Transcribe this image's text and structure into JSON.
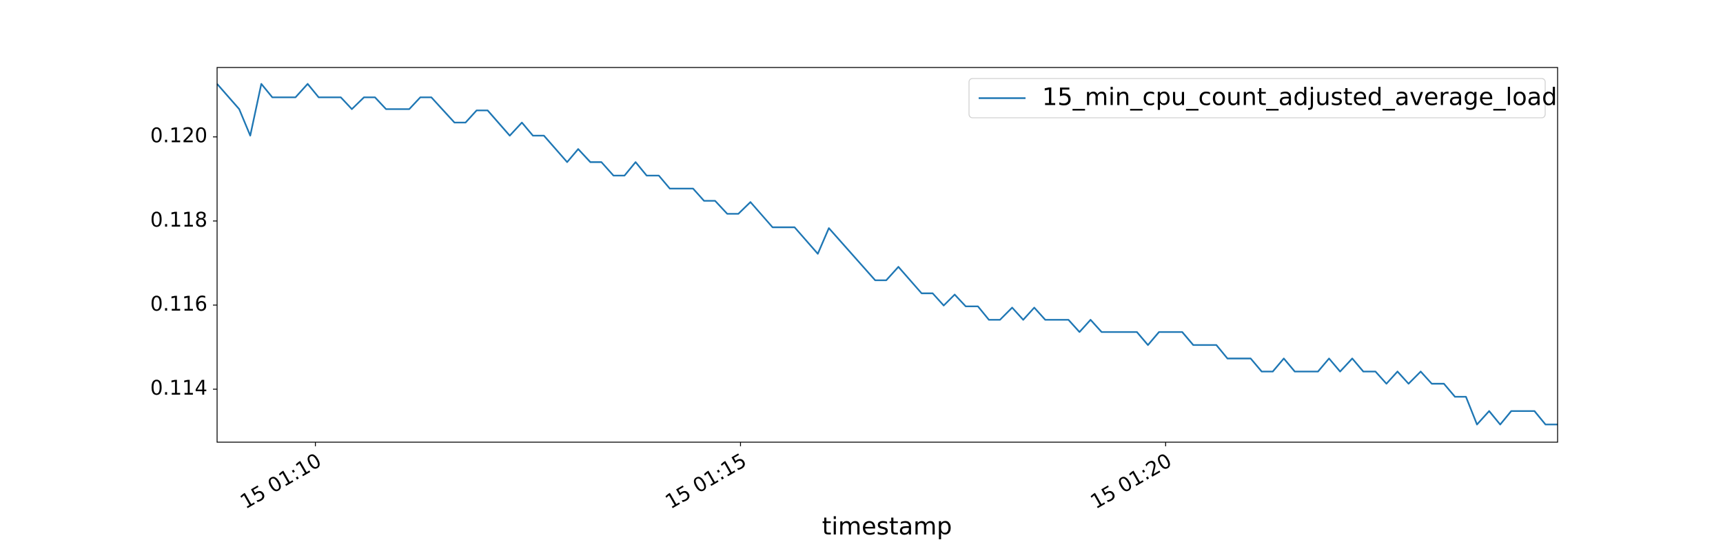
{
  "chart_data": {
    "type": "line",
    "xlabel": "timestamp",
    "legend": "upper right",
    "grid": false,
    "xlim": [
      8.844,
      24.61
    ],
    "ylim": [
      0.11274,
      0.12165
    ],
    "xticks": [
      {
        "value": 10,
        "label": "15 01:10"
      },
      {
        "value": 15,
        "label": "15 01:15"
      },
      {
        "value": 20,
        "label": "15 01:20"
      }
    ],
    "yticks": [
      {
        "value": 0.12,
        "label": "0.120"
      },
      0.118,
      0.116,
      0.114
    ],
    "x": [
      8.844,
      9.104,
      9.234,
      9.364,
      9.494,
      9.766,
      9.909,
      10.039,
      10.299,
      10.429,
      10.571,
      10.701,
      10.831,
      11.104,
      11.234,
      11.364,
      11.636,
      11.766,
      11.896,
      12.026,
      12.286,
      12.429,
      12.558,
      12.688,
      12.961,
      13.091,
      13.234,
      13.364,
      13.506,
      13.636,
      13.766,
      13.896,
      14.039,
      14.169,
      14.442,
      14.571,
      14.701,
      14.844,
      14.974,
      15.117,
      15.377,
      15.636,
      15.909,
      16.039,
      16.584,
      16.714,
      16.857,
      17.13,
      17.26,
      17.39,
      17.519,
      17.649,
      17.792,
      17.922,
      18.052,
      18.195,
      18.325,
      18.455,
      18.584,
      18.857,
      18.987,
      19.117,
      19.247,
      19.662,
      19.792,
      19.922,
      20.195,
      20.325,
      20.597,
      20.727,
      21.0,
      21.13,
      21.26,
      21.39,
      21.519,
      21.792,
      21.922,
      22.052,
      22.195,
      22.325,
      22.468,
      22.597,
      22.727,
      22.857,
      23.0,
      23.13,
      23.273,
      23.403,
      23.532,
      23.662,
      23.805,
      23.935,
      24.065,
      24.338,
      24.468,
      24.61
    ],
    "series": [
      {
        "name": "15_min_cpu_count_adjusted_average_load",
        "color": "#1f77b4",
        "values": [
          0.12126,
          0.12066,
          0.12003,
          0.12126,
          0.12094,
          0.12094,
          0.12126,
          0.12094,
          0.12094,
          0.12066,
          0.12094,
          0.12094,
          0.12066,
          0.12066,
          0.12094,
          0.12094,
          0.12034,
          0.12034,
          0.12063,
          0.12063,
          0.12003,
          0.12034,
          0.12003,
          0.12003,
          0.1194,
          0.11971,
          0.1194,
          0.1194,
          0.11908,
          0.11908,
          0.1194,
          0.11908,
          0.11908,
          0.11877,
          0.11877,
          0.11848,
          0.11848,
          0.11817,
          0.11817,
          0.11845,
          0.11785,
          0.11785,
          0.11722,
          0.11783,
          0.11659,
          0.11659,
          0.11691,
          0.11628,
          0.11628,
          0.11599,
          0.11625,
          0.11597,
          0.11597,
          0.11565,
          0.11565,
          0.11594,
          0.11565,
          0.11594,
          0.11565,
          0.11565,
          0.11536,
          0.11565,
          0.11536,
          0.11536,
          0.11505,
          0.11536,
          0.11536,
          0.11505,
          0.11505,
          0.11473,
          0.11473,
          0.11442,
          0.11442,
          0.11473,
          0.11442,
          0.11442,
          0.11473,
          0.11442,
          0.11473,
          0.11442,
          0.11442,
          0.11413,
          0.11442,
          0.11413,
          0.11442,
          0.11413,
          0.11413,
          0.11382,
          0.11382,
          0.11316,
          0.11348,
          0.11316,
          0.11348,
          0.11348,
          0.11316,
          0.11316
        ]
      }
    ]
  }
}
